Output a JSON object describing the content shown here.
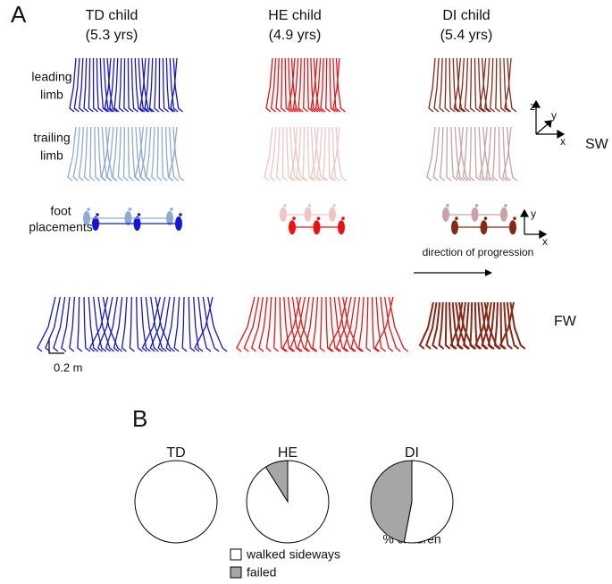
{
  "panel_a": {
    "label": "A",
    "columns": [
      {
        "title": "TD child",
        "age": "(5.3 yrs)"
      },
      {
        "title": "HE child",
        "age": "(4.9 yrs)"
      },
      {
        "title": "DI child",
        "age": "(5.4 yrs)"
      }
    ],
    "rows": [
      [
        "leading",
        "limb"
      ],
      [
        "trailing",
        "limb"
      ],
      [
        "foot",
        "placements"
      ]
    ],
    "axes_3d": [
      "z",
      "y",
      "x"
    ],
    "axes_2d": [
      "y",
      "x"
    ],
    "sw": "SW",
    "fw": "FW",
    "direction": "direction of progression",
    "scale": "0.2 m"
  },
  "chart_data": {
    "type": "pie",
    "label": "B",
    "categories": [
      "TD",
      "HE",
      "DI"
    ],
    "series": [
      {
        "name": "walked sideways",
        "color": "#ffffff",
        "values": [
          100,
          91,
          53
        ]
      },
      {
        "name": "failed",
        "color": "#a6a6a6",
        "values": [
          0,
          9,
          47
        ]
      }
    ],
    "annotation": "% children"
  }
}
